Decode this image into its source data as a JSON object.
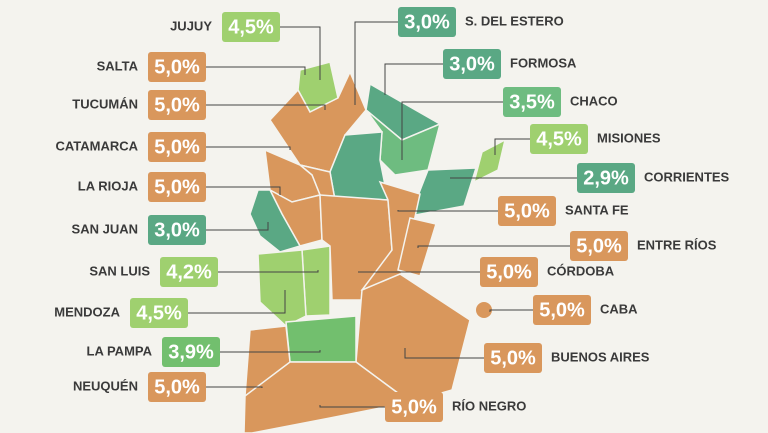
{
  "left": [
    {
      "name": "JUJUY",
      "value": "4,5%",
      "color": "#9fd06f"
    },
    {
      "name": "SALTA",
      "value": "5,0%",
      "color": "#d9975c"
    },
    {
      "name": "TUCUMÁN",
      "value": "5,0%",
      "color": "#d9975c"
    },
    {
      "name": "CATAMARCA",
      "value": "5,0%",
      "color": "#d9975c"
    },
    {
      "name": "LA RIOJA",
      "value": "5,0%",
      "color": "#d9975c"
    },
    {
      "name": "SAN JUAN",
      "value": "3,0%",
      "color": "#5aa884"
    },
    {
      "name": "SAN LUIS",
      "value": "4,2%",
      "color": "#9fd06f"
    },
    {
      "name": "MENDOZA",
      "value": "4,5%",
      "color": "#9fd06f"
    },
    {
      "name": "LA PAMPA",
      "value": "3,9%",
      "color": "#72bf6e"
    },
    {
      "name": "NEUQUÉN",
      "value": "5,0%",
      "color": "#d9975c"
    }
  ],
  "right": [
    {
      "name": "S. DEL ESTERO",
      "value": "3,0%",
      "color": "#5aa884"
    },
    {
      "name": "FORMOSA",
      "value": "3,0%",
      "color": "#5aa884"
    },
    {
      "name": "CHACO",
      "value": "3,5%",
      "color": "#6ebc80"
    },
    {
      "name": "MISIONES",
      "value": "4,5%",
      "color": "#9fd06f"
    },
    {
      "name": "CORRIENTES",
      "value": "2,9%",
      "color": "#5aa884"
    },
    {
      "name": "SANTA FE",
      "value": "5,0%",
      "color": "#d9975c"
    },
    {
      "name": "ENTRE RÍOS",
      "value": "5,0%",
      "color": "#d9975c"
    },
    {
      "name": "CÓRDOBA",
      "value": "5,0%",
      "color": "#d9975c"
    },
    {
      "name": "CABA",
      "value": "5,0%",
      "color": "#d9975c"
    },
    {
      "name": "BUENOS AIRES",
      "value": "5,0%",
      "color": "#d9975c"
    },
    {
      "name": "RÍO NEGRO",
      "value": "5,0%",
      "color": "#d9975c"
    }
  ]
}
